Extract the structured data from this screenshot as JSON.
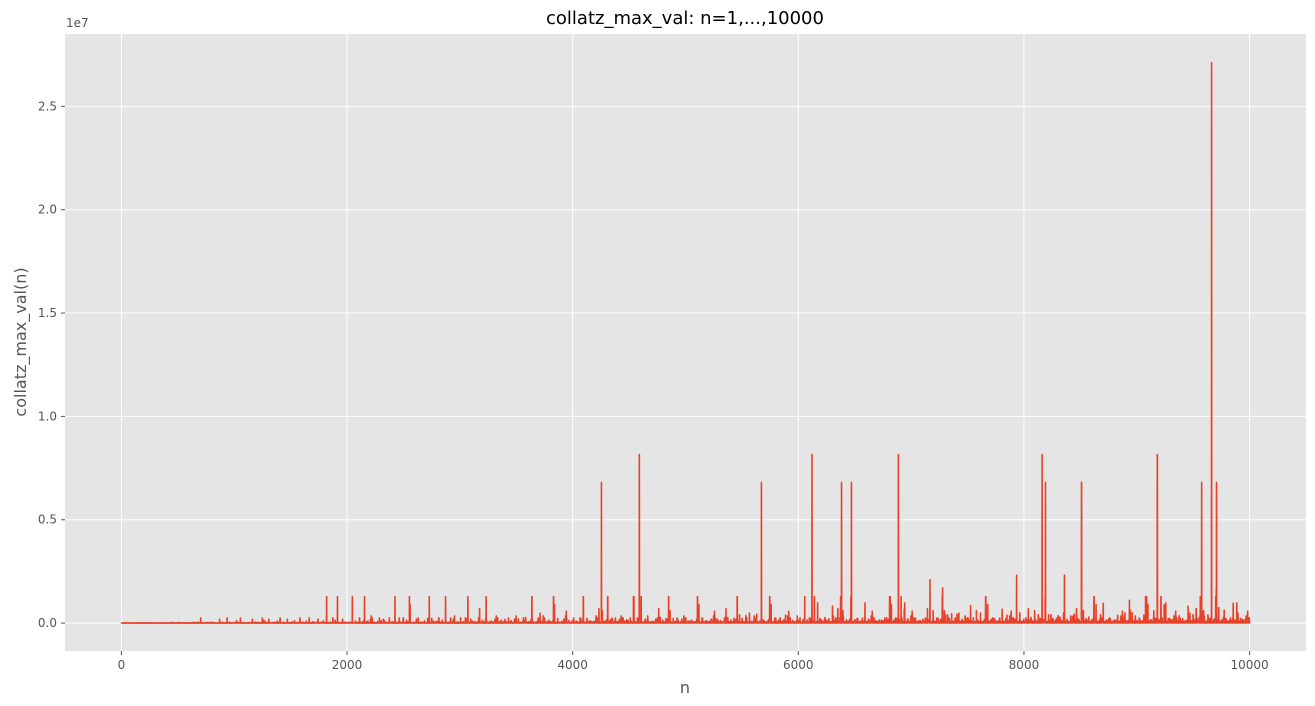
{
  "chart_data": {
    "type": "line",
    "title": "collatz_max_val: n=1,...,10000",
    "xlabel": "n",
    "ylabel": "collatz_max_val(n)",
    "y_offset_label": "1e7",
    "xlim": [
      -500,
      10500
    ],
    "ylim": [
      -1350000,
      28500000
    ],
    "x_ticks": [
      0,
      2000,
      4000,
      6000,
      8000,
      10000
    ],
    "x_tick_labels": [
      "0",
      "2000",
      "4000",
      "6000",
      "8000",
      "10000"
    ],
    "y_ticks": [
      0,
      5000000,
      10000000,
      15000000,
      20000000,
      25000000
    ],
    "y_tick_labels": [
      "0.0",
      "0.5",
      "1.0",
      "1.5",
      "2.0",
      "2.5"
    ],
    "grid": true,
    "colors": {
      "line": "#e8412a",
      "plot_bg": "#e5e5e5",
      "grid": "#ffffff"
    },
    "series": [
      {
        "values_note": "collatz_max_val(n) for n = 1..10000",
        "x": [
          1,
          700,
          1000,
          1500,
          1800,
          1900,
          2100,
          2500,
          2900,
          3200,
          3600,
          3800,
          4000,
          4255,
          4300,
          4591,
          4800,
          5100,
          5400,
          5663,
          5700,
          6000,
          6121,
          6200,
          6383,
          6473,
          6600,
          6887,
          7000,
          7164,
          7279,
          7500,
          7700,
          7919,
          8000,
          8153,
          8191,
          8359,
          8511,
          8700,
          9000,
          9183,
          9300,
          9577,
          9663,
          9700,
          9900,
          10000
        ],
        "y": [
          4,
          250000,
          250000,
          300000,
          1250000,
          1250000,
          1250000,
          1250000,
          1250000,
          1250000,
          1250000,
          1250000,
          1250000,
          6810136,
          1250000,
          8153620,
          700000,
          1250000,
          1250000,
          6810136,
          1250000,
          1250000,
          8153620,
          900000,
          6810136,
          6810136,
          1000000,
          8153620,
          1000000,
          2100000,
          1700000,
          800000,
          1250000,
          2300000,
          700000,
          8153620,
          6810136,
          2300000,
          6810136,
          1250000,
          1250000,
          8153620,
          900000,
          6810136,
          27114424,
          6810136,
          1000000,
          500000
        ]
      }
    ]
  }
}
